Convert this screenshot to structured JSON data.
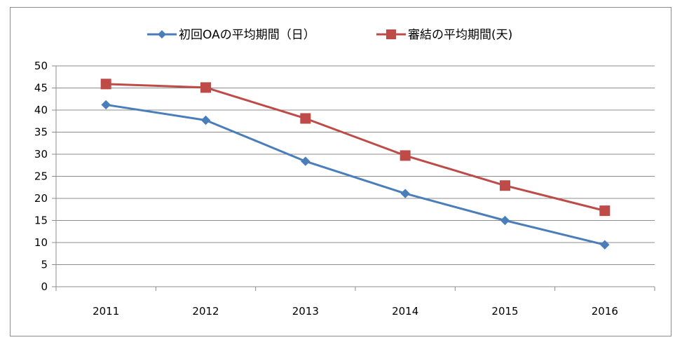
{
  "chart_data": {
    "type": "line",
    "title": "",
    "xlabel": "",
    "ylabel": "",
    "categories": [
      "2011",
      "2012",
      "2013",
      "2014",
      "2015",
      "2016"
    ],
    "ylim": [
      0,
      50
    ],
    "yticks": [
      "0",
      "5",
      "10",
      "15",
      "20",
      "25",
      "30",
      "35",
      "40",
      "45",
      "50"
    ],
    "grid": true,
    "legend_position": "top",
    "series": [
      {
        "name": "初回OAの平均期間（日）",
        "marker": "diamond",
        "color": "#4a7ebb",
        "values": [
          41.2,
          37.7,
          28.4,
          21.1,
          15.0,
          9.5
        ]
      },
      {
        "name": "審結の平均期間(天)",
        "marker": "square",
        "color": "#be4b48",
        "values": [
          45.9,
          45.1,
          38.1,
          29.7,
          22.9,
          17.2
        ]
      }
    ]
  }
}
